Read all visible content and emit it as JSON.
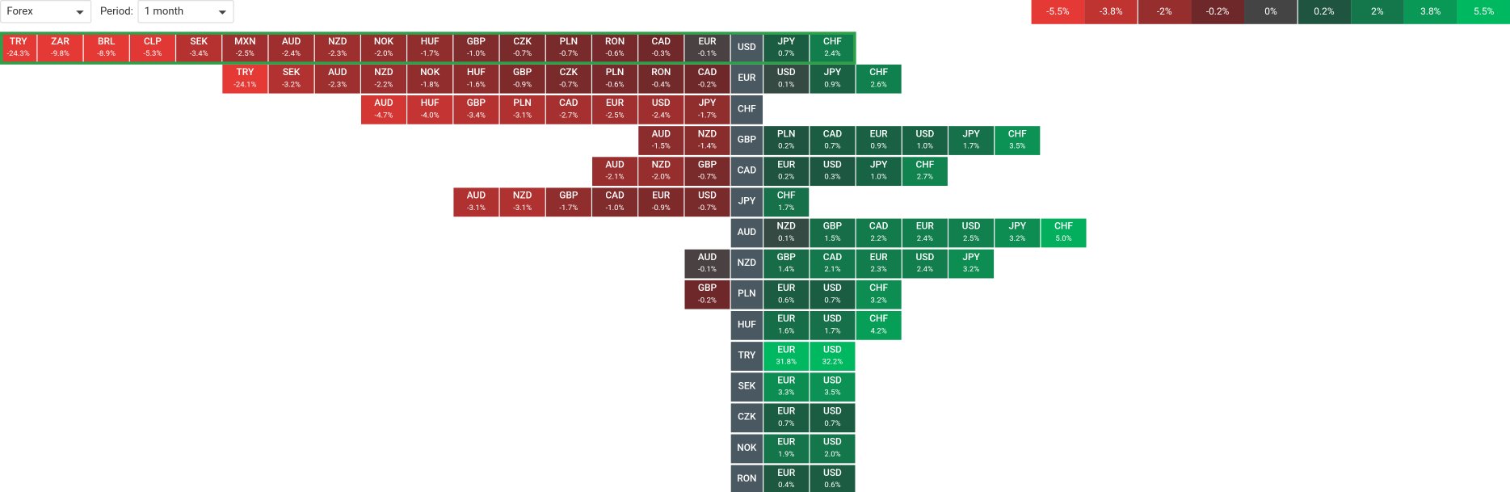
{
  "header": {
    "market": "Forex",
    "period_label": "Period:",
    "period": "1 month"
  },
  "legend": [
    "-5.5%",
    "-3.8%",
    "-2%",
    "-0.2%",
    "0%",
    "0.2%",
    "2%",
    "3.8%",
    "5.5%"
  ],
  "rows": [
    {
      "base": "USD",
      "left": [
        {
          "code": "TRY",
          "change": "-24.3%"
        },
        {
          "code": "ZAR",
          "change": "-9.8%"
        },
        {
          "code": "BRL",
          "change": "-8.9%"
        },
        {
          "code": "CLP",
          "change": "-5.3%"
        },
        {
          "code": "SEK",
          "change": "-3.4%"
        },
        {
          "code": "MXN",
          "change": "-2.5%"
        },
        {
          "code": "AUD",
          "change": "-2.4%"
        },
        {
          "code": "NZD",
          "change": "-2.3%"
        },
        {
          "code": "NOK",
          "change": "-2.0%"
        },
        {
          "code": "HUF",
          "change": "-1.7%"
        },
        {
          "code": "GBP",
          "change": "-1.0%"
        },
        {
          "code": "CZK",
          "change": "-0.7%"
        },
        {
          "code": "PLN",
          "change": "-0.7%"
        },
        {
          "code": "RON",
          "change": "-0.6%"
        },
        {
          "code": "CAD",
          "change": "-0.3%"
        },
        {
          "code": "EUR",
          "change": "-0.1%"
        }
      ],
      "right": [
        {
          "code": "JPY",
          "change": "0.7%"
        },
        {
          "code": "CHF",
          "change": "2.4%"
        }
      ]
    },
    {
      "base": "EUR",
      "left": [
        {
          "code": "TRY",
          "change": "-24.1%"
        },
        {
          "code": "SEK",
          "change": "-3.2%"
        },
        {
          "code": "AUD",
          "change": "-2.3%"
        },
        {
          "code": "NZD",
          "change": "-2.2%"
        },
        {
          "code": "NOK",
          "change": "-1.8%"
        },
        {
          "code": "HUF",
          "change": "-1.6%"
        },
        {
          "code": "GBP",
          "change": "-0.9%"
        },
        {
          "code": "CZK",
          "change": "-0.7%"
        },
        {
          "code": "PLN",
          "change": "-0.6%"
        },
        {
          "code": "RON",
          "change": "-0.4%"
        },
        {
          "code": "CAD",
          "change": "-0.2%"
        }
      ],
      "right": [
        {
          "code": "USD",
          "change": "0.1%"
        },
        {
          "code": "JPY",
          "change": "0.9%"
        },
        {
          "code": "CHF",
          "change": "2.6%"
        }
      ]
    },
    {
      "base": "CHF",
      "left": [
        {
          "code": "AUD",
          "change": "-4.7%"
        },
        {
          "code": "HUF",
          "change": "-4.0%"
        },
        {
          "code": "GBP",
          "change": "-3.4%"
        },
        {
          "code": "PLN",
          "change": "-3.1%"
        },
        {
          "code": "CAD",
          "change": "-2.7%"
        },
        {
          "code": "EUR",
          "change": "-2.5%"
        },
        {
          "code": "USD",
          "change": "-2.4%"
        },
        {
          "code": "JPY",
          "change": "-1.7%"
        }
      ],
      "right": []
    },
    {
      "base": "GBP",
      "left": [
        {
          "code": "AUD",
          "change": "-1.5%"
        },
        {
          "code": "NZD",
          "change": "-1.4%"
        }
      ],
      "right": [
        {
          "code": "PLN",
          "change": "0.2%"
        },
        {
          "code": "CAD",
          "change": "0.7%"
        },
        {
          "code": "EUR",
          "change": "0.9%"
        },
        {
          "code": "USD",
          "change": "1.0%"
        },
        {
          "code": "JPY",
          "change": "1.7%"
        },
        {
          "code": "CHF",
          "change": "3.5%"
        }
      ]
    },
    {
      "base": "CAD",
      "left": [
        {
          "code": "AUD",
          "change": "-2.1%"
        },
        {
          "code": "NZD",
          "change": "-2.0%"
        },
        {
          "code": "GBP",
          "change": "-0.7%"
        }
      ],
      "right": [
        {
          "code": "EUR",
          "change": "0.2%"
        },
        {
          "code": "USD",
          "change": "0.3%"
        },
        {
          "code": "JPY",
          "change": "1.0%"
        },
        {
          "code": "CHF",
          "change": "2.7%"
        }
      ]
    },
    {
      "base": "JPY",
      "left": [
        {
          "code": "AUD",
          "change": "-3.1%"
        },
        {
          "code": "NZD",
          "change": "-3.1%"
        },
        {
          "code": "GBP",
          "change": "-1.7%"
        },
        {
          "code": "CAD",
          "change": "-1.0%"
        },
        {
          "code": "EUR",
          "change": "-0.9%"
        },
        {
          "code": "USD",
          "change": "-0.7%"
        }
      ],
      "right": [
        {
          "code": "CHF",
          "change": "1.7%"
        }
      ]
    },
    {
      "base": "AUD",
      "left": [],
      "right": [
        {
          "code": "NZD",
          "change": "0.1%"
        },
        {
          "code": "GBP",
          "change": "1.5%"
        },
        {
          "code": "CAD",
          "change": "2.2%"
        },
        {
          "code": "EUR",
          "change": "2.4%"
        },
        {
          "code": "USD",
          "change": "2.5%"
        },
        {
          "code": "JPY",
          "change": "3.2%"
        },
        {
          "code": "CHF",
          "change": "5.0%"
        }
      ]
    },
    {
      "base": "NZD",
      "left": [
        {
          "code": "AUD",
          "change": "-0.1%"
        }
      ],
      "right": [
        {
          "code": "GBP",
          "change": "1.4%"
        },
        {
          "code": "CAD",
          "change": "2.1%"
        },
        {
          "code": "EUR",
          "change": "2.3%"
        },
        {
          "code": "USD",
          "change": "2.4%"
        },
        {
          "code": "JPY",
          "change": "3.2%"
        }
      ]
    },
    {
      "base": "PLN",
      "left": [
        {
          "code": "GBP",
          "change": "-0.2%"
        }
      ],
      "right": [
        {
          "code": "EUR",
          "change": "0.6%"
        },
        {
          "code": "USD",
          "change": "0.7%"
        },
        {
          "code": "CHF",
          "change": "3.2%"
        }
      ]
    },
    {
      "base": "HUF",
      "left": [],
      "right": [
        {
          "code": "EUR",
          "change": "1.6%"
        },
        {
          "code": "USD",
          "change": "1.7%"
        },
        {
          "code": "CHF",
          "change": "4.2%"
        }
      ]
    },
    {
      "base": "TRY",
      "left": [],
      "right": [
        {
          "code": "EUR",
          "change": "31.8%"
        },
        {
          "code": "USD",
          "change": "32.2%"
        }
      ]
    },
    {
      "base": "SEK",
      "left": [],
      "right": [
        {
          "code": "EUR",
          "change": "3.3%"
        },
        {
          "code": "USD",
          "change": "3.5%"
        }
      ]
    },
    {
      "base": "CZK",
      "left": [],
      "right": [
        {
          "code": "EUR",
          "change": "0.7%"
        },
        {
          "code": "USD",
          "change": "0.7%"
        }
      ]
    },
    {
      "base": "NOK",
      "left": [],
      "right": [
        {
          "code": "EUR",
          "change": "1.9%"
        },
        {
          "code": "USD",
          "change": "2.0%"
        }
      ]
    },
    {
      "base": "RON",
      "left": [],
      "right": [
        {
          "code": "EUR",
          "change": "0.4%"
        },
        {
          "code": "USD",
          "change": "0.6%"
        }
      ]
    }
  ]
}
